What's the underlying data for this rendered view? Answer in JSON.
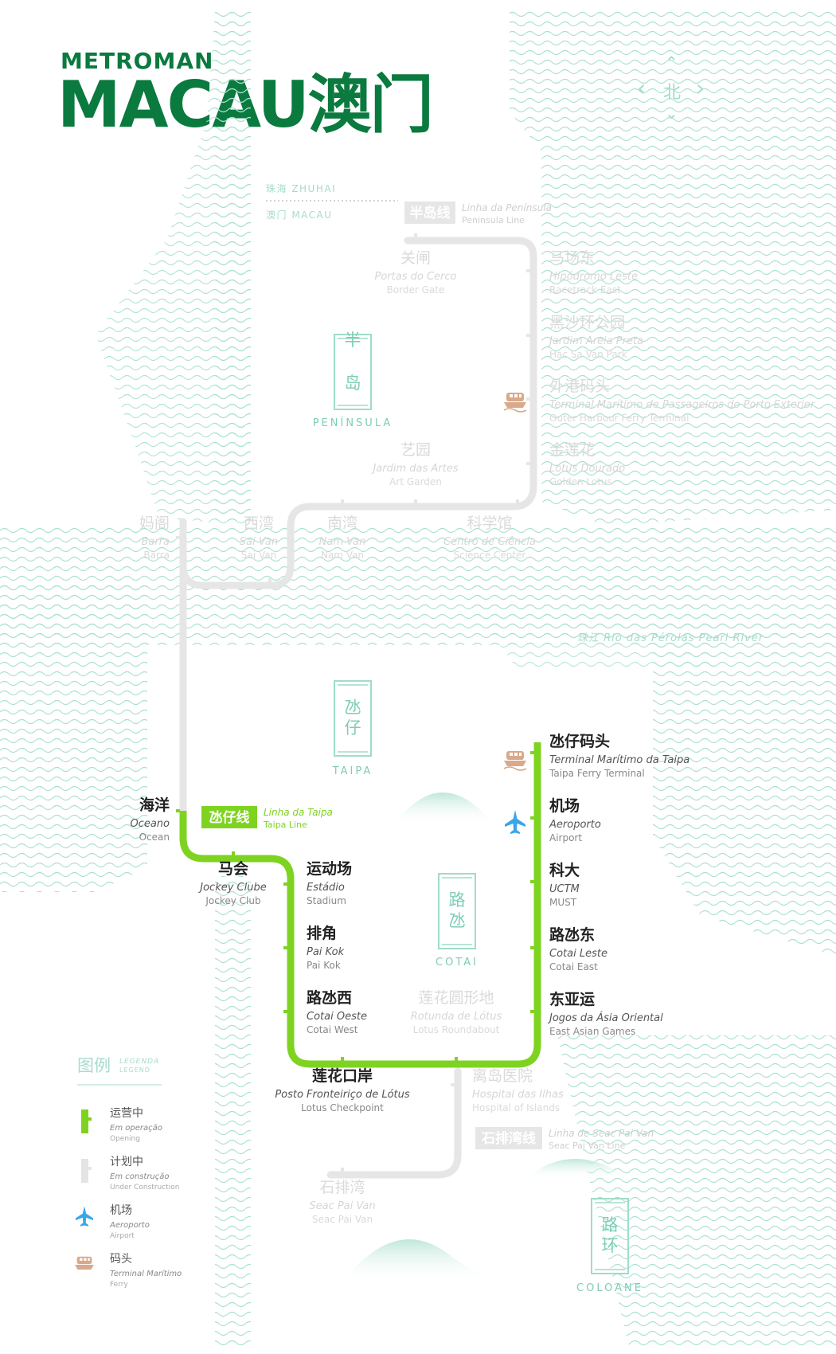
{
  "brand": {
    "small": "METROMAN",
    "big": "MACAU澳门"
  },
  "compass": {
    "north": "北",
    "up": "⌃",
    "down": "⌄",
    "left": "‹",
    "right": "›"
  },
  "colors": {
    "taipa_line": "#7ed321",
    "planned": "#e4e4e4",
    "water": "#9fdccb",
    "brand": "#0a7a3f",
    "ferry": "#d9a98a",
    "airport": "#3aa6e8"
  },
  "boundary": {
    "zhuhai": "珠海  ZHUHAI",
    "macau": "澳门  MACAU"
  },
  "river": "珠江  Rio das Pérolas  Pearl River",
  "districts": [
    {
      "id": "peninsula",
      "zh": "半岛",
      "pt": "PENÍNSULA"
    },
    {
      "id": "taipa",
      "zh": "氹仔",
      "pt": "TAIPA"
    },
    {
      "id": "cotai",
      "zh": "路氹",
      "pt": "COTAI"
    },
    {
      "id": "coloane",
      "zh": "路环",
      "pt": "COLOANE"
    }
  ],
  "lines": [
    {
      "id": "peninsula",
      "badge": "半岛线",
      "pt": "Linha da Península",
      "en": "Peninsula Line"
    },
    {
      "id": "taipa",
      "badge": "氹仔线",
      "pt": "Linha da Taipa",
      "en": "Taipa Line"
    },
    {
      "id": "seacpaivan",
      "badge": "石排湾线",
      "pt": "Linha de Seac Pai Van",
      "en": "Seac Pai Van Line"
    }
  ],
  "stations": [
    {
      "id": "portas",
      "zh": "关闸",
      "pt": "Portas do Cerco",
      "en": "Border Gate",
      "status": "planned"
    },
    {
      "id": "hipodromo",
      "zh": "马场东",
      "pt": "Hipódromo Leste",
      "en": "Racetrack East",
      "status": "planned"
    },
    {
      "id": "areia",
      "zh": "黑沙环公园",
      "pt": "Jardim Areia Preta",
      "en": "Hac Sa Van Park",
      "status": "planned"
    },
    {
      "id": "outer",
      "zh": "外港码头",
      "pt": "Terminal Marítimo de Passageiros do Porto Exterior",
      "en": "Outer Harbour Ferry Terminal",
      "status": "planned"
    },
    {
      "id": "golden",
      "zh": "金莲花",
      "pt": "Lótus Dourado",
      "en": "Golden Lotus",
      "status": "planned"
    },
    {
      "id": "artes",
      "zh": "艺园",
      "pt": "Jardim das Artes",
      "en": "Art Garden",
      "status": "planned"
    },
    {
      "id": "barra",
      "zh": "妈阁",
      "pt": "Barra",
      "en": "Barra",
      "status": "planned"
    },
    {
      "id": "saivan",
      "zh": "西湾",
      "pt": "Sai Van",
      "en": "Sai Van",
      "status": "planned"
    },
    {
      "id": "namvan",
      "zh": "南湾",
      "pt": "Nam Van",
      "en": "Nam Van",
      "status": "planned"
    },
    {
      "id": "ciencia",
      "zh": "科学馆",
      "pt": "Centro de Ciência",
      "en": "Science Center",
      "status": "planned"
    },
    {
      "id": "ocean",
      "zh": "海洋",
      "pt": "Oceano",
      "en": "Ocean",
      "status": "open"
    },
    {
      "id": "jockey",
      "zh": "马会",
      "pt": "Jockey Clube",
      "en": "Jockey Club",
      "status": "open"
    },
    {
      "id": "estadio",
      "zh": "运动场",
      "pt": "Estádio",
      "en": "Stadium",
      "status": "open"
    },
    {
      "id": "paikok",
      "zh": "排角",
      "pt": "Pai Kok",
      "en": "Pai Kok",
      "status": "open"
    },
    {
      "id": "cotaiw",
      "zh": "路氹西",
      "pt": "Cotai Oeste",
      "en": "Cotai West",
      "status": "open"
    },
    {
      "id": "lotus",
      "zh": "莲花口岸",
      "pt": "Posto Fronteiriço de Lótus",
      "en": "Lotus Checkpoint",
      "status": "open"
    },
    {
      "id": "rotunda",
      "zh": "莲花圆形地",
      "pt": "Rotunda de Lótus",
      "en": "Lotus Roundabout",
      "status": "planned"
    },
    {
      "id": "taipaferry",
      "zh": "氹仔码头",
      "pt": "Terminal Marítimo da Taipa",
      "en": "Taipa Ferry Terminal",
      "status": "open"
    },
    {
      "id": "airport",
      "zh": "机场",
      "pt": "Aeroporto",
      "en": "Airport",
      "status": "open"
    },
    {
      "id": "uctm",
      "zh": "科大",
      "pt": "UCTM",
      "en": "MUST",
      "status": "open"
    },
    {
      "id": "cotaie",
      "zh": "路氹东",
      "pt": "Cotai Leste",
      "en": "Cotai East",
      "status": "open"
    },
    {
      "id": "eastasian",
      "zh": "东亚运",
      "pt": "Jogos da Ásia Oriental",
      "en": "East Asian Games",
      "status": "open"
    },
    {
      "id": "ilhas",
      "zh": "离岛医院",
      "pt": "Hospital das Ilhas",
      "en": "Hospital of Islands",
      "status": "planned"
    },
    {
      "id": "seac",
      "zh": "石排湾",
      "pt": "Seac Pai Van",
      "en": "Seac Pai Van",
      "status": "planned"
    }
  ],
  "legend": {
    "title_zh": "图例",
    "title_pt": "LEGENDA",
    "title_en": "LEGEND",
    "items": [
      {
        "id": "open",
        "zh": "运营中",
        "pt": "Em operação",
        "en": "Opening"
      },
      {
        "id": "construction",
        "zh": "计划中",
        "pt": "Em construção",
        "en": "Under Construction"
      },
      {
        "id": "airport",
        "zh": "机场",
        "pt": "Aeroporto",
        "en": "Airport"
      },
      {
        "id": "ferry",
        "zh": "码头",
        "pt": "Terminal Marítimo",
        "en": "Ferry"
      }
    ]
  }
}
